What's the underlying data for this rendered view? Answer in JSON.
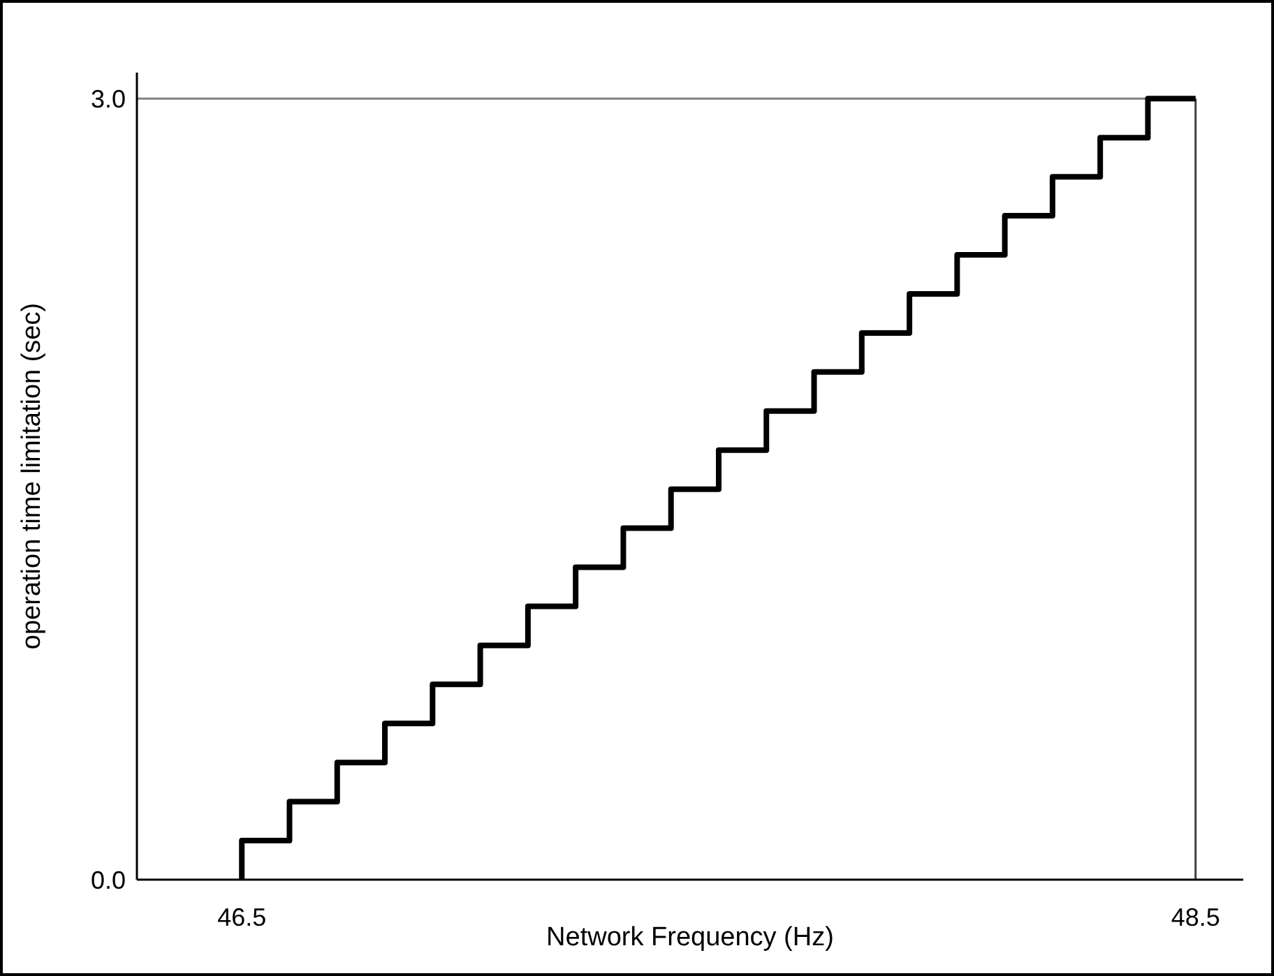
{
  "chart_data": {
    "type": "step",
    "xlabel": "Network Frequency (Hz)",
    "ylabel": "operation time limitation (sec)",
    "x": [
      46.5,
      46.5,
      46.6,
      46.7,
      46.8,
      46.9,
      47.0,
      47.1,
      47.2,
      47.3,
      47.4,
      47.5,
      47.6,
      47.7,
      47.8,
      47.9,
      48.0,
      48.1,
      48.2,
      48.3,
      48.4,
      48.5
    ],
    "values": [
      0,
      0.15,
      0.3,
      0.45,
      0.6,
      0.75,
      0.9,
      1.05,
      1.2,
      1.35,
      1.5,
      1.65,
      1.8,
      1.95,
      2.1,
      2.25,
      2.4,
      2.55,
      2.7,
      2.85,
      3.0,
      3.0
    ],
    "color": "#000000",
    "line_style": "solid",
    "marker": "none",
    "xlim": [
      46.28,
      48.6
    ],
    "ylim": [
      0,
      3.1
    ],
    "xticks": [
      46.5,
      48.5
    ],
    "yticks": [
      {
        "value": 0,
        "label": "0.0"
      },
      {
        "value": 3,
        "label": "3.0"
      }
    ],
    "ref_lines": [
      {
        "axis": "y",
        "value": 3.0,
        "color": "#808080"
      },
      {
        "axis": "x",
        "value": 48.5,
        "color": "#404040"
      }
    ],
    "grid": false,
    "legend": false
  }
}
